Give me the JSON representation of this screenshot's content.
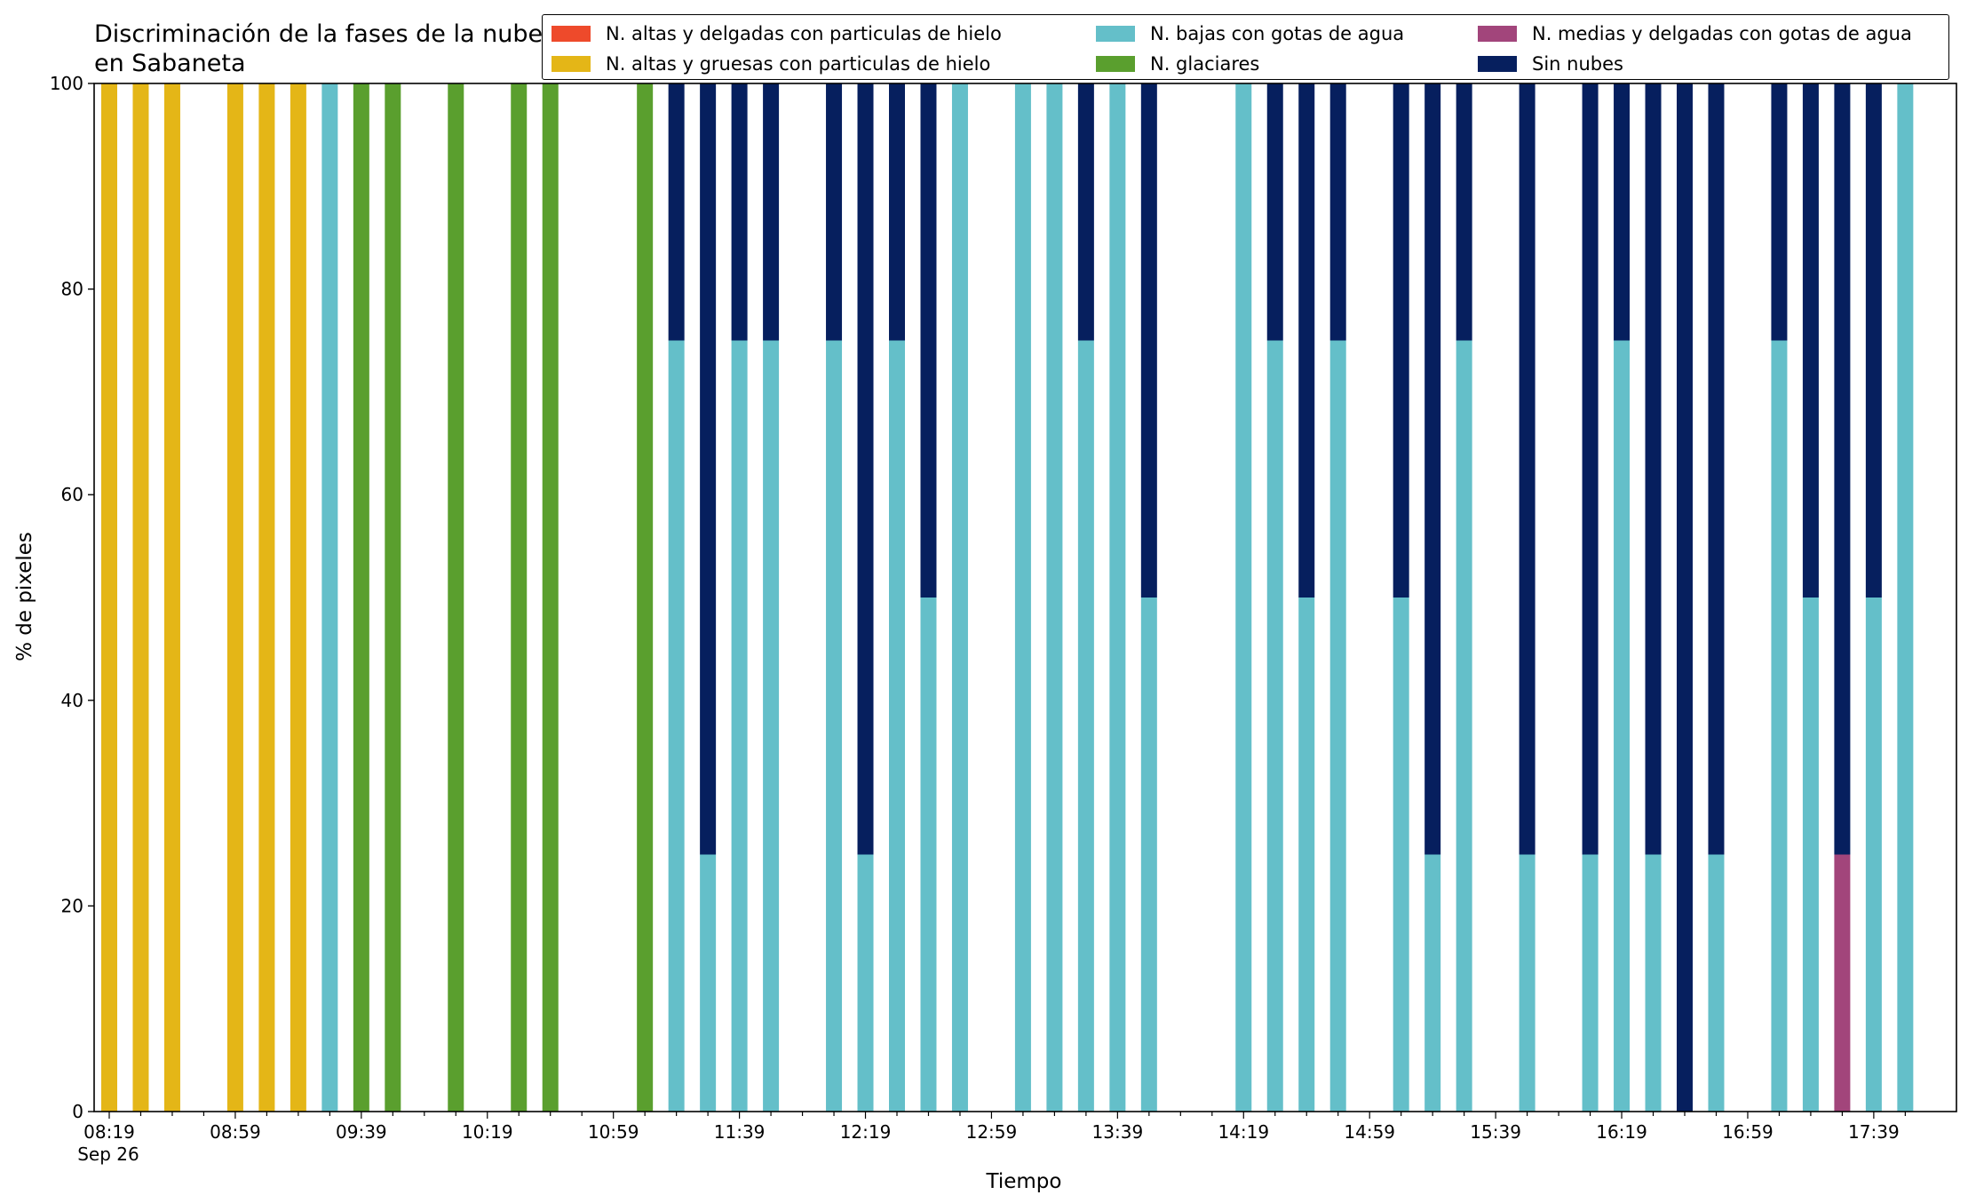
{
  "chart_data": {
    "type": "bar",
    "stacked": true,
    "title": "Discriminación de la fases de la nube en Sabaneta",
    "xlabel": "Tiempo",
    "ylabel": "% de pixeles",
    "ylim": [
      0,
      100
    ],
    "yticks": [
      "0",
      "20",
      "40",
      "60",
      "80",
      "100"
    ],
    "xtick_labels": [
      "08:19",
      "08:59",
      "09:39",
      "10:19",
      "10:59",
      "11:39",
      "12:19",
      "12:59",
      "13:39",
      "14:19",
      "14:59",
      "15:39",
      "16:19",
      "16:59",
      "17:39"
    ],
    "x_date_label": "Sep 26",
    "grid": false,
    "legend_position": "top-right",
    "categories": [
      "08:19",
      "08:29",
      "08:39",
      "08:49",
      "08:59",
      "09:09",
      "09:19",
      "09:29",
      "09:39",
      "09:49",
      "09:59",
      "10:09",
      "10:19",
      "10:29",
      "10:39",
      "10:49",
      "10:59",
      "11:09",
      "11:19",
      "11:29",
      "11:39",
      "11:49",
      "11:59",
      "12:09",
      "12:19",
      "12:29",
      "12:39",
      "12:49",
      "12:59",
      "13:09",
      "13:19",
      "13:29",
      "13:39",
      "13:49",
      "13:59",
      "14:09",
      "14:19",
      "14:29",
      "14:39",
      "14:49",
      "14:59",
      "15:09",
      "15:19",
      "15:29",
      "15:39",
      "15:49",
      "15:59",
      "16:09",
      "16:19",
      "16:29",
      "16:39",
      "16:49",
      "16:59",
      "17:09",
      "17:19",
      "17:29",
      "17:39",
      "17:49"
    ],
    "series": [
      {
        "name": "N. altas y delgadas con particulas de hielo",
        "color": "#EE4A2B",
        "values": [
          0,
          0,
          0,
          0,
          0,
          0,
          0,
          0,
          0,
          0,
          0,
          0,
          0,
          0,
          0,
          0,
          0,
          0,
          0,
          0,
          0,
          0,
          0,
          0,
          0,
          0,
          0,
          0,
          0,
          0,
          0,
          0,
          0,
          0,
          0,
          0,
          0,
          0,
          0,
          0,
          0,
          0,
          0,
          0,
          0,
          0,
          0,
          0,
          0,
          0,
          0,
          0,
          0,
          0,
          0,
          0,
          0,
          0
        ]
      },
      {
        "name": "N. altas y gruesas con particulas de hielo",
        "color": "#E4B617",
        "values": [
          100,
          100,
          100,
          0,
          100,
          100,
          100,
          0,
          0,
          0,
          0,
          0,
          0,
          0,
          0,
          0,
          0,
          0,
          0,
          0,
          0,
          0,
          0,
          0,
          0,
          0,
          0,
          0,
          0,
          0,
          0,
          0,
          0,
          0,
          0,
          0,
          0,
          0,
          0,
          0,
          0,
          0,
          0,
          0,
          0,
          0,
          0,
          0,
          0,
          0,
          0,
          0,
          0,
          0,
          0,
          0,
          0,
          0
        ]
      },
      {
        "name": "N. bajas con gotas de agua",
        "color": "#64BFC9",
        "values": [
          0,
          0,
          0,
          0,
          0,
          0,
          0,
          100,
          0,
          0,
          0,
          0,
          0,
          0,
          0,
          0,
          0,
          0,
          75,
          25,
          75,
          75,
          0,
          75,
          25,
          75,
          50,
          100,
          0,
          100,
          100,
          75,
          100,
          50,
          0,
          0,
          100,
          75,
          50,
          75,
          0,
          50,
          25,
          75,
          0,
          25,
          0,
          25,
          75,
          25,
          0,
          25,
          0,
          75,
          50,
          0,
          50,
          100
        ]
      },
      {
        "name": "N. glaciares",
        "color": "#5A9F2E",
        "values": [
          0,
          0,
          0,
          0,
          0,
          0,
          0,
          0,
          100,
          100,
          0,
          100,
          0,
          100,
          100,
          0,
          0,
          100,
          0,
          0,
          0,
          0,
          0,
          0,
          0,
          0,
          0,
          0,
          0,
          0,
          0,
          0,
          0,
          0,
          0,
          0,
          0,
          0,
          0,
          0,
          0,
          0,
          0,
          0,
          0,
          0,
          0,
          0,
          0,
          0,
          0,
          0,
          0,
          0,
          0,
          0,
          0,
          0
        ]
      },
      {
        "name": "N. medias y delgadas con gotas de agua",
        "color": "#A2457B",
        "values": [
          0,
          0,
          0,
          0,
          0,
          0,
          0,
          0,
          0,
          0,
          0,
          0,
          0,
          0,
          0,
          0,
          0,
          0,
          0,
          0,
          0,
          0,
          0,
          0,
          0,
          0,
          0,
          0,
          0,
          0,
          0,
          0,
          0,
          0,
          0,
          0,
          0,
          0,
          0,
          0,
          0,
          0,
          0,
          0,
          0,
          0,
          0,
          0,
          0,
          0,
          0,
          0,
          0,
          0,
          0,
          25,
          0,
          0
        ]
      },
      {
        "name": "Sin nubes",
        "color": "#061F5E",
        "values": [
          0,
          0,
          0,
          0,
          0,
          0,
          0,
          0,
          0,
          0,
          0,
          0,
          0,
          0,
          0,
          0,
          0,
          0,
          25,
          75,
          25,
          25,
          0,
          25,
          75,
          25,
          50,
          0,
          0,
          0,
          0,
          25,
          0,
          50,
          0,
          0,
          0,
          25,
          50,
          25,
          0,
          50,
          75,
          25,
          0,
          75,
          0,
          75,
          25,
          75,
          100,
          75,
          0,
          25,
          50,
          75,
          50,
          0
        ]
      }
    ]
  }
}
